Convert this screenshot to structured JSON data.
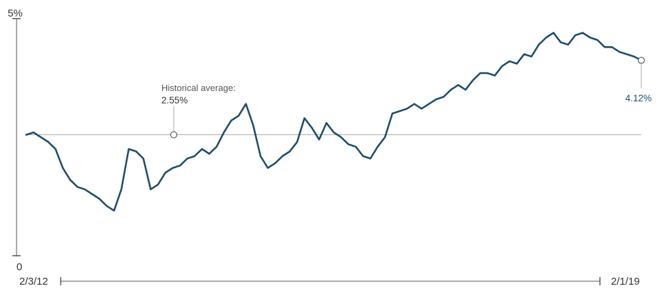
{
  "chart_data": {
    "type": "line",
    "title": "",
    "xlabel": "",
    "ylabel": "",
    "y_tick_labels": [
      "5%",
      "0"
    ],
    "ylim": [
      0,
      5
    ],
    "x_start_label": "2/3/12",
    "x_end_label": "2/1/19",
    "grid": false,
    "colors": {
      "line": "#1e4d6b",
      "reference": "#aaaaaa",
      "axis": "#555555"
    },
    "reference_line": {
      "label": "Historical average:",
      "value_text": "2.55%",
      "value": 2.55
    },
    "end_marker": {
      "value_text": "4.12%",
      "value": 4.12
    },
    "series": [
      {
        "x": [
          "2/3/12",
          "3/1/12",
          "4/2/12",
          "5/1/12",
          "6/1/12",
          "7/2/12",
          "8/1/12",
          "9/4/12",
          "10/1/12",
          "11/1/12",
          "12/3/12",
          "1/2/13",
          "2/1/13",
          "3/1/13",
          "4/1/13",
          "5/1/13",
          "6/3/13",
          "7/1/13",
          "8/1/13",
          "9/3/13",
          "10/1/13",
          "11/1/13",
          "12/2/13",
          "1/2/14",
          "2/3/14",
          "3/3/14",
          "4/1/14",
          "5/1/14",
          "6/2/14",
          "7/1/14",
          "8/1/14",
          "9/2/14",
          "10/1/14",
          "11/3/14",
          "12/1/14",
          "1/2/15",
          "2/2/15",
          "3/2/15",
          "4/1/15",
          "5/1/15",
          "6/1/15",
          "7/1/15",
          "8/3/15",
          "9/1/15",
          "10/1/15",
          "11/2/15",
          "12/1/15",
          "1/4/16",
          "2/1/16",
          "3/1/16",
          "4/1/16",
          "5/2/16",
          "6/1/16",
          "7/1/16",
          "8/1/16",
          "9/1/16",
          "10/3/16",
          "11/1/16",
          "12/1/16",
          "1/3/17",
          "2/1/17",
          "3/1/17",
          "4/3/17",
          "5/1/17",
          "6/1/17",
          "7/3/17",
          "8/1/17",
          "9/1/17",
          "10/2/17",
          "11/1/17",
          "12/1/17",
          "1/2/18",
          "2/1/18",
          "3/1/18",
          "4/2/18",
          "5/1/18",
          "6/1/18",
          "7/2/18",
          "8/1/18",
          "9/4/18",
          "10/1/18",
          "11/1/18",
          "12/3/18",
          "1/2/19",
          "2/1/19"
        ],
        "values": [
          2.55,
          2.6,
          2.5,
          2.4,
          2.25,
          1.85,
          1.6,
          1.45,
          1.4,
          1.3,
          1.2,
          1.05,
          0.95,
          1.4,
          2.25,
          2.2,
          2.05,
          1.4,
          1.5,
          1.75,
          1.85,
          1.9,
          2.05,
          2.1,
          2.25,
          2.15,
          2.3,
          2.6,
          2.85,
          2.95,
          3.2,
          2.75,
          2.1,
          1.85,
          1.95,
          2.1,
          2.2,
          2.4,
          2.9,
          2.7,
          2.45,
          2.8,
          2.6,
          2.5,
          2.35,
          2.3,
          2.1,
          2.05,
          2.3,
          2.5,
          3.0,
          3.05,
          3.1,
          3.2,
          3.1,
          3.2,
          3.3,
          3.35,
          3.5,
          3.6,
          3.5,
          3.7,
          3.85,
          3.85,
          3.8,
          4.0,
          4.1,
          4.05,
          4.25,
          4.2,
          4.45,
          4.6,
          4.7,
          4.5,
          4.45,
          4.65,
          4.7,
          4.6,
          4.55,
          4.4,
          4.4,
          4.3,
          4.25,
          4.2,
          4.12
        ]
      }
    ]
  }
}
